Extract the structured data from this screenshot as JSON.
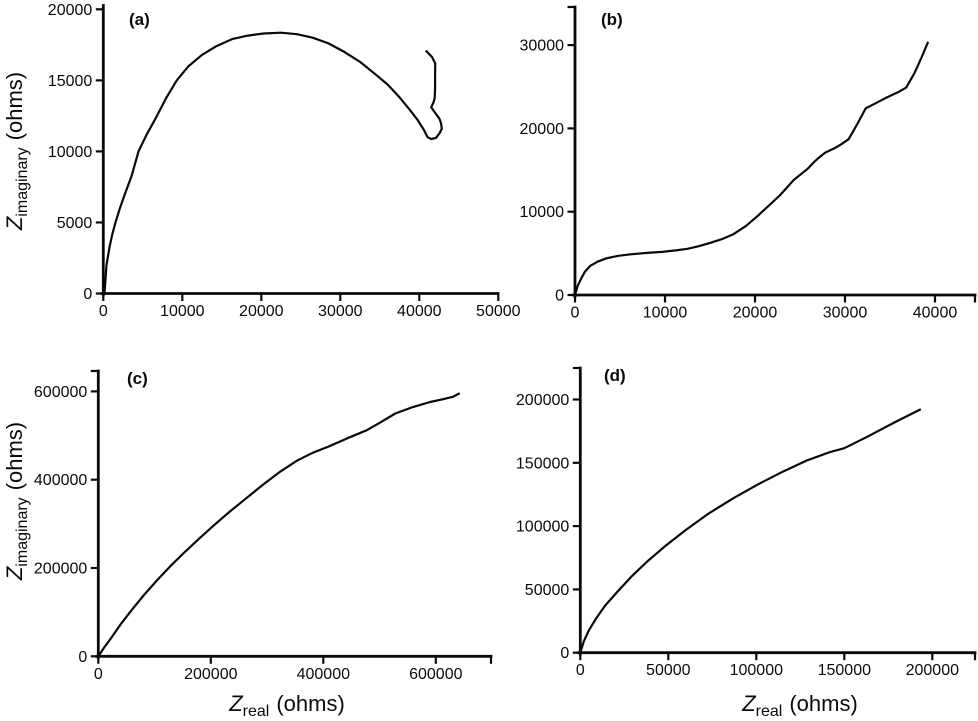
{
  "colors": {
    "line": "#0a0a0a",
    "background": "#ffffff"
  },
  "labels": {
    "y_axis": {
      "symbol": "Z",
      "subscript": "imaginary",
      "unit": "(ohms)"
    },
    "x_axis": {
      "symbol": "Z",
      "subscript": "real",
      "unit": "(ohms)"
    }
  },
  "chart_data": [
    {
      "id": "a",
      "type": "line",
      "label": "(a)",
      "ylabel": "Z_imaginary (ohms)",
      "xlim": [
        0,
        50000
      ],
      "ylim": [
        0,
        20500
      ],
      "grid": false,
      "legend": false,
      "xticks": {
        "values": [
          0,
          10000,
          20000,
          30000,
          40000,
          50000
        ],
        "labels": [
          "0",
          "10000",
          "20000",
          "30000",
          "40000",
          "50000"
        ]
      },
      "yticks": {
        "values": [
          0,
          5000,
          10000,
          15000,
          20000
        ],
        "labels": [
          "0",
          "5000",
          "10000",
          "15000",
          "20000"
        ]
      },
      "series": [
        {
          "name": "impedance-spectrum",
          "points": [
            [
              150,
              0
            ],
            [
              400,
              2000
            ],
            [
              800,
              3300
            ],
            [
              1150,
              4200
            ],
            [
              1550,
              5000
            ],
            [
              2100,
              6000
            ],
            [
              2800,
              7100
            ],
            [
              3600,
              8300
            ],
            [
              4450,
              10000
            ],
            [
              5500,
              11200
            ],
            [
              6700,
              12400
            ],
            [
              8000,
              13800
            ],
            [
              9300,
              15000
            ],
            [
              10800,
              16000
            ],
            [
              12500,
              16800
            ],
            [
              14300,
              17400
            ],
            [
              16300,
              17900
            ],
            [
              18300,
              18150
            ],
            [
              20300,
              18300
            ],
            [
              22500,
              18350
            ],
            [
              24500,
              18250
            ],
            [
              26500,
              18000
            ],
            [
              28500,
              17600
            ],
            [
              30500,
              17000
            ],
            [
              32500,
              16300
            ],
            [
              34500,
              15400
            ],
            [
              36000,
              14700
            ],
            [
              37500,
              13800
            ],
            [
              38700,
              13000
            ],
            [
              39800,
              12200
            ],
            [
              40600,
              11500
            ],
            [
              41050,
              11000
            ],
            [
              41500,
              10870
            ],
            [
              42100,
              10950
            ],
            [
              42600,
              11300
            ],
            [
              42850,
              11600
            ],
            [
              42750,
              12000
            ],
            [
              42550,
              12300
            ],
            [
              41900,
              12800
            ],
            [
              41500,
              13100
            ],
            [
              41800,
              13450
            ],
            [
              41950,
              13750
            ],
            [
              42000,
              14500
            ],
            [
              42000,
              15400
            ],
            [
              42010,
              16200
            ],
            [
              41600,
              16650
            ],
            [
              40900,
              17050
            ]
          ]
        }
      ]
    },
    {
      "id": "b",
      "type": "line",
      "label": "(b)",
      "xlim": [
        0,
        45000
      ],
      "ylim": [
        0,
        34500
      ],
      "grid": false,
      "legend": false,
      "xticks": {
        "values": [
          0,
          10000,
          20000,
          30000,
          40000
        ],
        "labels": [
          "0",
          "10000",
          "20000",
          "30000",
          "40000"
        ]
      },
      "yticks": {
        "values": [
          0,
          10000,
          20000,
          30000
        ],
        "labels": [
          "0",
          "10000",
          "20000",
          "30000"
        ]
      },
      "series": [
        {
          "name": "impedance-spectrum",
          "points": [
            [
              0,
              0
            ],
            [
              300,
              1100
            ],
            [
              700,
              2000
            ],
            [
              1100,
              2800
            ],
            [
              1700,
              3500
            ],
            [
              2500,
              4000
            ],
            [
              3500,
              4400
            ],
            [
              4800,
              4700
            ],
            [
              6300,
              4900
            ],
            [
              8000,
              5050
            ],
            [
              9700,
              5180
            ],
            [
              11200,
              5350
            ],
            [
              12500,
              5550
            ],
            [
              13700,
              5850
            ],
            [
              15000,
              6250
            ],
            [
              16300,
              6700
            ],
            [
              17600,
              7300
            ],
            [
              19000,
              8300
            ],
            [
              20300,
              9500
            ],
            [
              21500,
              10700
            ],
            [
              22800,
              12000
            ],
            [
              24300,
              13800
            ],
            [
              25100,
              14500
            ],
            [
              25800,
              15100
            ],
            [
              26500,
              15900
            ],
            [
              27000,
              16400
            ],
            [
              27800,
              17100
            ],
            [
              28800,
              17600
            ],
            [
              29600,
              18100
            ],
            [
              30400,
              18700
            ],
            [
              31300,
              20400
            ],
            [
              32300,
              22400
            ],
            [
              33200,
              22900
            ],
            [
              34600,
              23700
            ],
            [
              36000,
              24400
            ],
            [
              36800,
              24900
            ],
            [
              37700,
              26600
            ],
            [
              38500,
              28500
            ],
            [
              39200,
              30300
            ]
          ]
        }
      ]
    },
    {
      "id": "c",
      "type": "line",
      "label": "(c)",
      "xlabel": "Z_real (ohms)",
      "ylabel": "Z_imaginary (ohms)",
      "xlim": [
        0,
        700000
      ],
      "ylim": [
        0,
        645000
      ],
      "grid": false,
      "legend": false,
      "xticks": {
        "values": [
          0,
          200000,
          400000,
          600000
        ],
        "labels": [
          "0",
          "200000",
          "400000",
          "600000"
        ]
      },
      "yticks": {
        "values": [
          0,
          200000,
          400000,
          600000
        ],
        "labels": [
          "0",
          "200000",
          "400000",
          "600000"
        ]
      },
      "series": [
        {
          "name": "impedance-spectrum",
          "points": [
            [
              0,
              0
            ],
            [
              10000,
              19000
            ],
            [
              22000,
              40000
            ],
            [
              40000,
              73000
            ],
            [
              60000,
              106000
            ],
            [
              82000,
              140000
            ],
            [
              105000,
              173000
            ],
            [
              128000,
              204000
            ],
            [
              152000,
              234000
            ],
            [
              178000,
              265000
            ],
            [
              205000,
              296000
            ],
            [
              232000,
              326000
            ],
            [
              262000,
              357000
            ],
            [
              293000,
              389000
            ],
            [
              323000,
              418000
            ],
            [
              353000,
              443000
            ],
            [
              381000,
              461000
            ],
            [
              409000,
              475000
            ],
            [
              443000,
              494000
            ],
            [
              477000,
              512000
            ],
            [
              503000,
              531000
            ],
            [
              528000,
              550000
            ],
            [
              560000,
              565000
            ],
            [
              590000,
              576000
            ],
            [
              615000,
              583000
            ],
            [
              631000,
              588000
            ],
            [
              641000,
              595000
            ]
          ]
        }
      ]
    },
    {
      "id": "d",
      "type": "line",
      "label": "(d)",
      "xlabel": "Z_real (ohms)",
      "xlim": [
        0,
        224000
      ],
      "ylim": [
        0,
        224000
      ],
      "grid": false,
      "legend": false,
      "xticks": {
        "values": [
          0,
          50000,
          100000,
          150000,
          200000
        ],
        "labels": [
          "0",
          "50000",
          "100000",
          "150000",
          "200000"
        ]
      },
      "yticks": {
        "values": [
          0,
          50000,
          100000,
          150000,
          200000
        ],
        "labels": [
          "0",
          "50000",
          "100000",
          "150000",
          "200000"
        ]
      },
      "series": [
        {
          "name": "impedance-spectrum",
          "points": [
            [
              0,
              0
            ],
            [
              2000,
              9000
            ],
            [
              5000,
              18000
            ],
            [
              9000,
              27000
            ],
            [
              14000,
              37000
            ],
            [
              21000,
              48000
            ],
            [
              29000,
              60000
            ],
            [
              38000,
              72000
            ],
            [
              48000,
              84000
            ],
            [
              60000,
              97000
            ],
            [
              73000,
              110000
            ],
            [
              87000,
              122000
            ],
            [
              101000,
              133000
            ],
            [
              115000,
              143000
            ],
            [
              129000,
              152000
            ],
            [
              142000,
              158500
            ],
            [
              150000,
              161500
            ],
            [
              163000,
              170500
            ],
            [
              178000,
              181500
            ],
            [
              193000,
              192000
            ]
          ]
        }
      ]
    }
  ]
}
